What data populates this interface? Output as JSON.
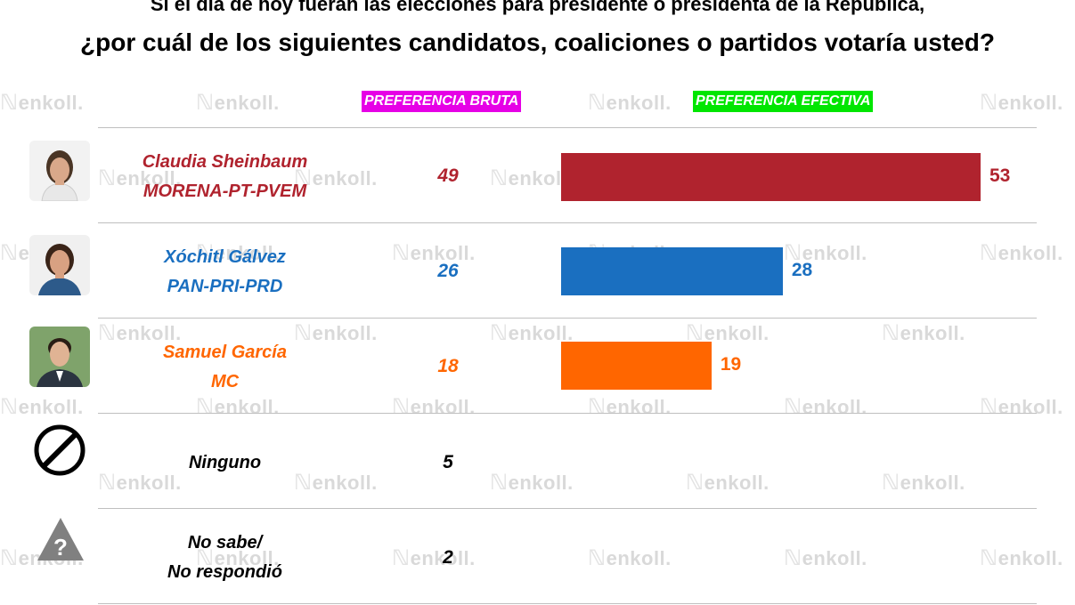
{
  "title": {
    "line1": "Si el día de hoy fueran las elecciones para presidente o presidenta de la República,",
    "line2": "¿por cuál de los siguientes candidatos, coaliciones o partidos votaría usted?"
  },
  "headers": {
    "bruta": "PREFERENCIA BRUTA",
    "efectiva": "PREFERENCIA EFECTIVA",
    "bruta_color": "#e600e6",
    "efectiva_color": "#00e600"
  },
  "watermark": {
    "text": "enkoll."
  },
  "rows": [
    {
      "name": "Claudia Sheinbaum",
      "party": "MORENA-PT-PVEM",
      "bruta": "49",
      "efectiva": "53",
      "color": "#b0232e",
      "icon": "candidate-photo"
    },
    {
      "name": "Xóchitl Gálvez",
      "party": "PAN-PRI-PRD",
      "bruta": "26",
      "efectiva": "28",
      "color": "#1a6fc0",
      "icon": "candidate-photo"
    },
    {
      "name": "Samuel García",
      "party": "MC",
      "bruta": "18",
      "efectiva": "19",
      "color": "#ff6600",
      "icon": "candidate-photo"
    },
    {
      "name": "Ninguno",
      "bruta": "5",
      "color": "#000000",
      "icon": "prohibited-icon"
    },
    {
      "name": "No sabe/",
      "party": "No respondió",
      "bruta": "2",
      "color": "#000000",
      "icon": "question-triangle-icon"
    }
  ],
  "chart_data": {
    "type": "bar",
    "title": "Si el día de hoy fueran las elecciones para presidente o presidenta de la República, ¿por cuál de los siguientes candidatos, coaliciones o partidos votaría usted?",
    "categories": [
      "Claudia Sheinbaum MORENA-PT-PVEM",
      "Xóchitl Gálvez PAN-PRI-PRD",
      "Samuel García MC",
      "Ninguno",
      "No sabe/ No respondió"
    ],
    "series": [
      {
        "name": "PREFERENCIA BRUTA",
        "values": [
          49,
          26,
          18,
          5,
          2
        ]
      },
      {
        "name": "PREFERENCIA EFECTIVA",
        "values": [
          53,
          28,
          19,
          null,
          null
        ]
      }
    ],
    "bar_colors": [
      "#b0232e",
      "#1a6fc0",
      "#ff6600"
    ],
    "orientation": "horizontal",
    "grid": false
  }
}
